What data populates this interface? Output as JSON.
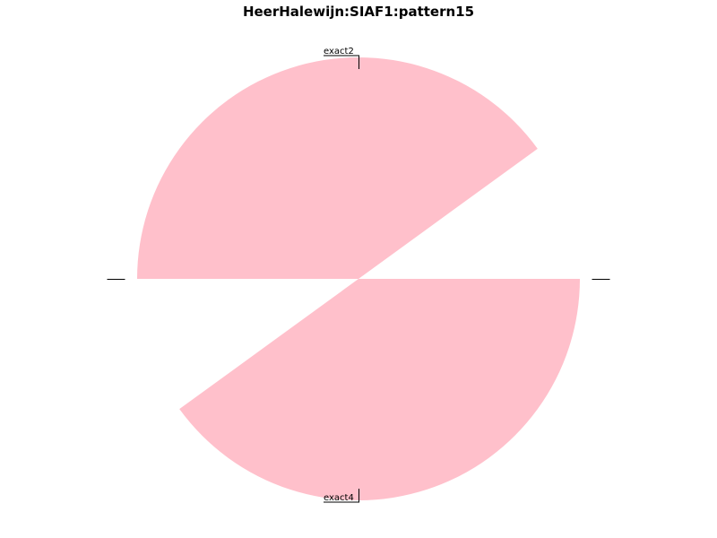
{
  "chart_data": {
    "type": "pie",
    "title": "HeerHalewijn:SIAF1:pattern15",
    "slices": [
      {
        "label": "",
        "value": 10,
        "color": "#ffffff"
      },
      {
        "label": "exact2",
        "value": 40,
        "color": "#ffc0cb"
      },
      {
        "label": "",
        "value": 10,
        "color": "#ffffff"
      },
      {
        "label": "exact4",
        "value": 40,
        "color": "#ffc0cb"
      }
    ],
    "start_angle_deg": 0,
    "direction": "counterclockwise",
    "legend": "none"
  }
}
